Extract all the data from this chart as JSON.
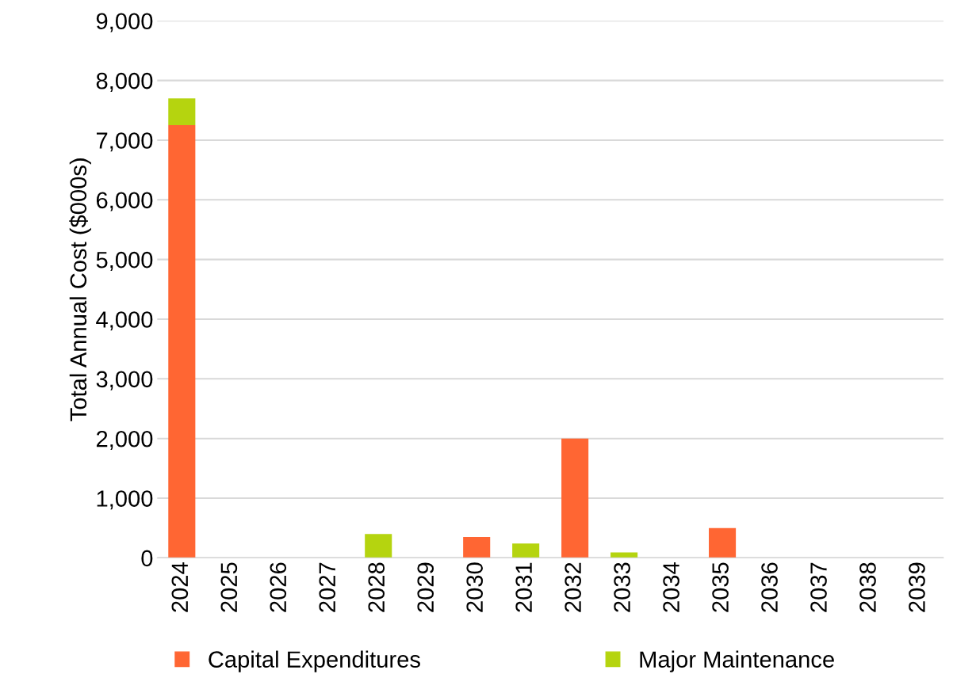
{
  "chart_data": {
    "type": "bar",
    "stacked": true,
    "ylabel": "Total Annual Cost ($000s)",
    "categories": [
      "2024",
      "2025",
      "2026",
      "2027",
      "2028",
      "2029",
      "2030",
      "2031",
      "2032",
      "2033",
      "2034",
      "2035",
      "2036",
      "2037",
      "2038",
      "2039"
    ],
    "series": [
      {
        "name": "Capital Expenditures",
        "color": "#ff6633",
        "values": [
          7250,
          0,
          0,
          0,
          0,
          0,
          350,
          0,
          2000,
          0,
          0,
          500,
          0,
          0,
          0,
          0
        ]
      },
      {
        "name": "Major Maintenance",
        "color": "#b5d40f",
        "values": [
          450,
          0,
          0,
          0,
          400,
          0,
          0,
          240,
          0,
          90,
          0,
          0,
          0,
          0,
          0,
          0
        ]
      }
    ],
    "ylim": [
      0,
      9000
    ],
    "yticks": [
      {
        "value": 0,
        "label": "0"
      },
      {
        "value": 1000,
        "label": "1,000"
      },
      {
        "value": 2000,
        "label": "2,000"
      },
      {
        "value": 3000,
        "label": "3,000"
      },
      {
        "value": 4000,
        "label": "4,000"
      },
      {
        "value": 5000,
        "label": "5,000"
      },
      {
        "value": 6000,
        "label": "6,000"
      },
      {
        "value": 7000,
        "label": "7,000"
      },
      {
        "value": 8000,
        "label": "8,000"
      },
      {
        "value": 9000,
        "label": "9,000"
      }
    ],
    "grid": "y",
    "legend": "bottom"
  }
}
